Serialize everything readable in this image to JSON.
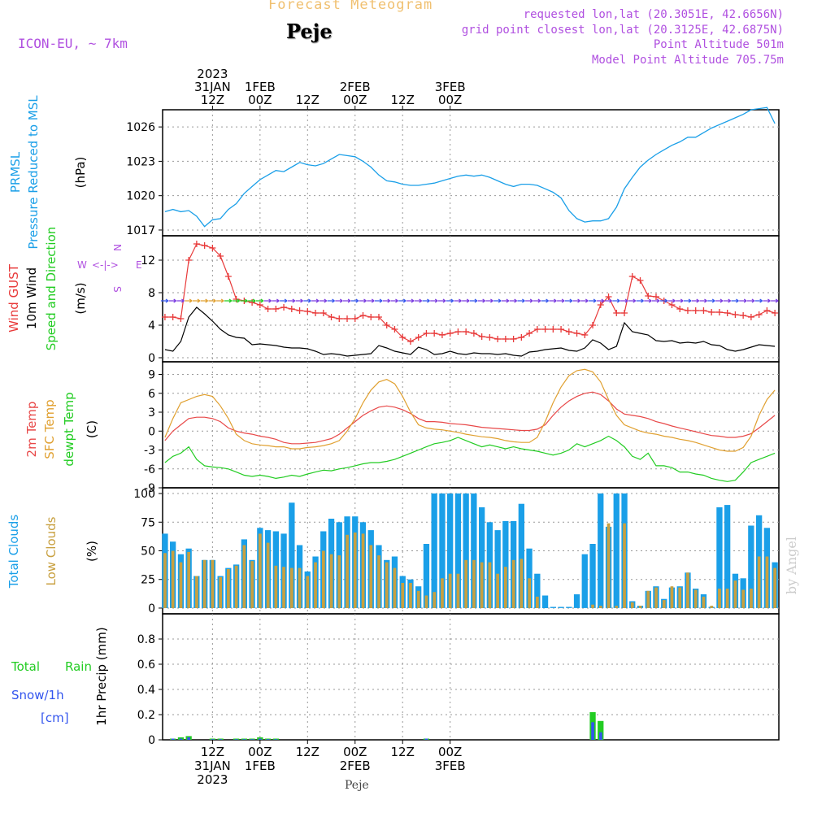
{
  "header": {
    "title": "Forecast Meteogram",
    "location": "Peje",
    "model": "ICON-EU, ~ 7km",
    "requested": "requested lon,lat (20.3051E, 42.6656N)",
    "closest": "grid point closest lon,lat (20.3125E, 42.6875N)",
    "point_alt": "Point Altitude 501m",
    "model_alt": "Model Point Altitude 705.75m",
    "watermark": "by Angel",
    "footer": "Peje"
  },
  "colors": {
    "pressure": "#1a9fe8",
    "gust": "#e83a3a",
    "wind": "#000000",
    "winddir": "#22cc22",
    "temp2m": "#e84848",
    "sfc": "#e0a030",
    "dewpt": "#22cc22",
    "total_clouds": "#1a9fe8",
    "low_clouds": "#c8a040",
    "rain": "#22cc22",
    "snow": "#3355ee",
    "title": "#f0c070",
    "info": "#b050e0"
  },
  "time_axis": {
    "top_labels": [
      {
        "h": 12,
        "lines": [
          "2023",
          "31JAN",
          "12Z"
        ]
      },
      {
        "h": 24,
        "lines": [
          "1FEB",
          "00Z"
        ]
      },
      {
        "h": 36,
        "lines": [
          "12Z"
        ]
      },
      {
        "h": 48,
        "lines": [
          "2FEB",
          "00Z"
        ]
      },
      {
        "h": 60,
        "lines": [
          "12Z"
        ]
      },
      {
        "h": 72,
        "lines": [
          "3FEB",
          "00Z"
        ]
      }
    ],
    "bottom_labels": [
      {
        "h": 12,
        "lines": [
          "12Z",
          "31JAN",
          "2023"
        ]
      },
      {
        "h": 24,
        "lines": [
          "00Z",
          "1FEB"
        ]
      },
      {
        "h": 36,
        "lines": [
          "12Z"
        ]
      },
      {
        "h": 48,
        "lines": [
          "00Z",
          "2FEB"
        ]
      },
      {
        "h": 60,
        "lines": [
          "12Z"
        ]
      },
      {
        "h": 72,
        "lines": [
          "00Z",
          "3FEB"
        ]
      }
    ]
  },
  "chart_data": [
    {
      "type": "line",
      "title": "PRMSL Pressure Reduced to MSL",
      "ylabel": "(hPa)",
      "ylim": [
        1016.5,
        1027.5
      ],
      "yticks": [
        1017,
        1020,
        1023,
        1026
      ],
      "x_hours": [
        0,
        2,
        4,
        6,
        8,
        10,
        12,
        14,
        16,
        18,
        20,
        22,
        24,
        26,
        28,
        30,
        32,
        34,
        36,
        38,
        40,
        42,
        44,
        46,
        48,
        50,
        52,
        54,
        56,
        58,
        60,
        62,
        64,
        66,
        68,
        70,
        72,
        74,
        76,
        78,
        80,
        82,
        84,
        86,
        88,
        90,
        92,
        94,
        96,
        98,
        100,
        102,
        104,
        106,
        108,
        110,
        112,
        114,
        116,
        118,
        120,
        122,
        124,
        126,
        128,
        130,
        132,
        134,
        136,
        138,
        140,
        142,
        144,
        146,
        148,
        150,
        152,
        154
      ],
      "series": [
        {
          "name": "PRMSL",
          "values": [
            1018.6,
            1018.8,
            1018.6,
            1018.7,
            1018.2,
            1017.3,
            1017.9,
            1018.0,
            1018.8,
            1019.3,
            1020.2,
            1020.8,
            1021.4,
            1021.8,
            1022.2,
            1022.1,
            1022.5,
            1022.9,
            1022.7,
            1022.6,
            1022.8,
            1023.2,
            1023.6,
            1023.5,
            1023.4,
            1023.0,
            1022.5,
            1021.8,
            1021.3,
            1021.2,
            1021.0,
            1020.9,
            1020.9,
            1021.0,
            1021.1,
            1021.3,
            1021.5,
            1021.7,
            1021.8,
            1021.7,
            1021.8,
            1021.6,
            1021.3,
            1021.0,
            1020.8,
            1021.0,
            1021.0,
            1020.9,
            1020.6,
            1020.3,
            1019.8,
            1018.7,
            1018.0,
            1017.7,
            1017.8,
            1017.8,
            1018.0,
            1019.0,
            1020.6,
            1021.6,
            1022.5,
            1023.1,
            1023.6,
            1024.0,
            1024.4,
            1024.7,
            1025.1,
            1025.1,
            1025.5,
            1025.9,
            1026.2,
            1026.5,
            1026.8,
            1027.1,
            1027.5,
            1027.6,
            1027.7,
            1026.3
          ]
        }
      ]
    },
    {
      "type": "line",
      "title": "Wind GUST / 10m Wind Speed and Direction",
      "ylabel": "(m/s)",
      "ylim": [
        -0.5,
        15
      ],
      "yticks": [
        0,
        4,
        8,
        12
      ],
      "direction_legend": {
        "n": "N",
        "s": "S",
        "w": "W",
        "e": "E",
        "arrow": "<-|->"
      },
      "x_hours": [
        0,
        2,
        4,
        6,
        8,
        10,
        12,
        14,
        16,
        18,
        20,
        22,
        24,
        26,
        28,
        30,
        32,
        34,
        36,
        38,
        40,
        42,
        44,
        46,
        48,
        50,
        52,
        54,
        56,
        58,
        60,
        62,
        64,
        66,
        68,
        70,
        72,
        74,
        76,
        78,
        80,
        82,
        84,
        86,
        88,
        90,
        92,
        94,
        96,
        98,
        100,
        102,
        104,
        106,
        108,
        110,
        112,
        114,
        116,
        118,
        120,
        122,
        124,
        126,
        128,
        130,
        132,
        134,
        136,
        138,
        140,
        142,
        144,
        146,
        148,
        150,
        152,
        154
      ],
      "series": [
        {
          "name": "Wind GUST",
          "values": [
            5.0,
            5.0,
            4.8,
            12.0,
            14.0,
            13.8,
            13.5,
            12.5,
            10.0,
            7.2,
            7.0,
            6.8,
            6.5,
            6.0,
            6.0,
            6.2,
            6.0,
            5.8,
            5.7,
            5.5,
            5.5,
            5.0,
            4.8,
            4.8,
            4.8,
            5.2,
            5.0,
            5.0,
            4.0,
            3.5,
            2.5,
            2.0,
            2.5,
            3.0,
            3.0,
            2.8,
            3.0,
            3.2,
            3.2,
            3.0,
            2.6,
            2.5,
            2.3,
            2.3,
            2.3,
            2.5,
            3.0,
            3.5,
            3.5,
            3.5,
            3.5,
            3.2,
            3.0,
            2.8,
            4.0,
            6.5,
            7.5,
            5.5,
            5.5,
            10.0,
            9.5,
            7.6,
            7.5,
            7.0,
            6.5,
            6.0,
            5.8,
            5.8,
            5.8,
            5.6,
            5.6,
            5.5,
            5.3,
            5.2,
            5.0,
            5.3,
            5.8,
            5.5
          ]
        },
        {
          "name": "10m Wind",
          "values": [
            1.0,
            0.8,
            2.0,
            5.0,
            6.2,
            5.4,
            4.5,
            3.5,
            2.8,
            2.5,
            2.4,
            1.6,
            1.7,
            1.6,
            1.5,
            1.3,
            1.2,
            1.2,
            1.1,
            0.8,
            0.4,
            0.5,
            0.4,
            0.2,
            0.3,
            0.4,
            0.5,
            1.5,
            1.2,
            0.8,
            0.6,
            0.4,
            1.3,
            1.0,
            0.4,
            0.5,
            0.8,
            0.5,
            0.4,
            0.6,
            0.5,
            0.5,
            0.4,
            0.5,
            0.3,
            0.2,
            0.7,
            0.8,
            1.0,
            1.1,
            1.2,
            0.9,
            0.8,
            1.2,
            2.2,
            1.8,
            1.0,
            1.4,
            4.3,
            3.2,
            3.0,
            2.8,
            2.1,
            2.0,
            2.1,
            1.8,
            1.9,
            1.8,
            2.0,
            1.6,
            1.5,
            1.0,
            0.8,
            1.0,
            1.3,
            1.6,
            1.5,
            1.4
          ]
        }
      ]
    },
    {
      "type": "line",
      "title": "2m Temp / SFC Temp / dewpt Temp",
      "ylabel": "(C)",
      "ylim": [
        -9,
        11
      ],
      "yticks": [
        -9,
        -6,
        -3,
        0,
        3,
        6,
        9
      ],
      "x_hours": [
        0,
        2,
        4,
        6,
        8,
        10,
        12,
        14,
        16,
        18,
        20,
        22,
        24,
        26,
        28,
        30,
        32,
        34,
        36,
        38,
        40,
        42,
        44,
        46,
        48,
        50,
        52,
        54,
        56,
        58,
        60,
        62,
        64,
        66,
        68,
        70,
        72,
        74,
        76,
        78,
        80,
        82,
        84,
        86,
        88,
        90,
        92,
        94,
        96,
        98,
        100,
        102,
        104,
        106,
        108,
        110,
        112,
        114,
        116,
        118,
        120,
        122,
        124,
        126,
        128,
        130,
        132,
        134,
        136,
        138,
        140,
        142,
        144,
        146,
        148,
        150,
        152,
        154
      ],
      "series": [
        {
          "name": "2m Temp",
          "values": [
            -1.5,
            0.0,
            1.0,
            2.0,
            2.2,
            2.2,
            2.0,
            1.5,
            0.5,
            0.0,
            -0.3,
            -0.5,
            -0.8,
            -1.0,
            -1.3,
            -1.8,
            -2.0,
            -2.0,
            -1.9,
            -1.8,
            -1.5,
            -1.2,
            -0.5,
            0.5,
            1.5,
            2.5,
            3.2,
            3.8,
            4.0,
            3.8,
            3.4,
            2.8,
            2.0,
            1.5,
            1.5,
            1.4,
            1.2,
            1.1,
            1.0,
            0.8,
            0.6,
            0.5,
            0.4,
            0.3,
            0.2,
            0.1,
            0.1,
            0.3,
            1.0,
            2.5,
            3.8,
            4.8,
            5.5,
            6.0,
            6.2,
            5.8,
            4.8,
            3.5,
            2.7,
            2.5,
            2.3,
            2.0,
            1.5,
            1.2,
            0.8,
            0.5,
            0.2,
            -0.1,
            -0.4,
            -0.7,
            -0.8,
            -1.0,
            -1.0,
            -0.8,
            -0.4,
            0.5,
            1.5,
            2.5
          ]
        },
        {
          "name": "SFC Temp",
          "values": [
            -1.0,
            2.0,
            4.5,
            5.0,
            5.5,
            5.8,
            5.5,
            4.0,
            2.0,
            -0.5,
            -1.5,
            -2.0,
            -2.2,
            -2.3,
            -2.5,
            -2.5,
            -2.8,
            -2.8,
            -2.6,
            -2.5,
            -2.3,
            -2.0,
            -1.5,
            0.0,
            2.0,
            4.5,
            6.5,
            7.8,
            8.2,
            7.5,
            5.5,
            3.0,
            1.0,
            0.5,
            0.3,
            0.2,
            0.0,
            -0.2,
            -0.5,
            -0.7,
            -0.9,
            -1.0,
            -1.2,
            -1.5,
            -1.7,
            -1.8,
            -1.8,
            -1.0,
            1.5,
            4.5,
            7.0,
            8.8,
            9.6,
            9.8,
            9.4,
            7.8,
            5.0,
            2.5,
            1.0,
            0.5,
            0.0,
            -0.3,
            -0.5,
            -0.8,
            -1.0,
            -1.3,
            -1.5,
            -1.8,
            -2.2,
            -2.6,
            -3.0,
            -3.2,
            -3.2,
            -2.6,
            -0.8,
            2.5,
            5.0,
            6.5
          ]
        },
        {
          "name": "dewpt Temp",
          "values": [
            -5.0,
            -4.0,
            -3.5,
            -2.5,
            -4.5,
            -5.5,
            -5.7,
            -5.8,
            -6.0,
            -6.5,
            -7.0,
            -7.2,
            -7.0,
            -7.2,
            -7.5,
            -7.3,
            -7.0,
            -7.2,
            -6.8,
            -6.5,
            -6.2,
            -6.3,
            -6.0,
            -5.8,
            -5.5,
            -5.2,
            -5.0,
            -5.0,
            -4.8,
            -4.5,
            -4.0,
            -3.5,
            -3.0,
            -2.5,
            -2.0,
            -1.8,
            -1.5,
            -1.0,
            -1.5,
            -2.0,
            -2.5,
            -2.2,
            -2.5,
            -2.8,
            -2.5,
            -2.8,
            -3.0,
            -3.2,
            -3.5,
            -3.8,
            -3.5,
            -3.0,
            -2.0,
            -2.5,
            -2.0,
            -1.5,
            -0.8,
            -1.5,
            -2.5,
            -4.0,
            -4.5,
            -3.5,
            -5.5,
            -5.5,
            -5.8,
            -6.5,
            -6.5,
            -6.8,
            -7.0,
            -7.5,
            -7.8,
            -8.0,
            -7.8,
            -6.5,
            -5.0,
            -4.5,
            -4.0,
            -3.5
          ]
        }
      ]
    },
    {
      "type": "bar",
      "title": "Total Clouds / Low Clouds",
      "ylabel": "(%)",
      "ylim": [
        -5,
        105
      ],
      "yticks": [
        0,
        25,
        50,
        75,
        100
      ],
      "x_hours": [
        0,
        2,
        4,
        6,
        8,
        10,
        12,
        14,
        16,
        18,
        20,
        22,
        24,
        26,
        28,
        30,
        32,
        34,
        36,
        38,
        40,
        42,
        44,
        46,
        48,
        50,
        52,
        54,
        56,
        58,
        60,
        62,
        64,
        66,
        68,
        70,
        72,
        74,
        76,
        78,
        80,
        82,
        84,
        86,
        88,
        90,
        92,
        94,
        96,
        98,
        100,
        102,
        104,
        106,
        108,
        110,
        112,
        114,
        116,
        118,
        120,
        122,
        124,
        126,
        128,
        130,
        132,
        134,
        136,
        138,
        140,
        142,
        144,
        146,
        148,
        150,
        152,
        154
      ],
      "series": [
        {
          "name": "Total Clouds",
          "values": [
            65,
            58,
            47,
            52,
            28,
            42,
            42,
            28,
            35,
            38,
            60,
            42,
            70,
            68,
            67,
            65,
            92,
            55,
            32,
            45,
            67,
            78,
            75,
            80,
            80,
            75,
            68,
            55,
            42,
            45,
            28,
            25,
            19,
            56,
            100,
            100,
            100,
            100,
            100,
            100,
            88,
            75,
            68,
            76,
            76,
            91,
            52,
            30,
            11,
            1,
            1,
            1,
            12,
            47,
            56,
            100,
            71,
            100,
            100,
            6,
            2,
            15,
            19,
            8,
            18,
            19,
            31,
            17,
            12,
            1,
            88,
            90,
            30,
            26,
            72,
            81,
            70,
            40
          ]
        },
        {
          "name": "Low Clouds",
          "values": [
            48,
            50,
            40,
            49,
            28,
            42,
            42,
            27,
            34,
            37,
            55,
            41,
            65,
            57,
            37,
            36,
            35,
            35,
            28,
            40,
            50,
            47,
            46,
            64,
            66,
            65,
            55,
            46,
            40,
            35,
            22,
            22,
            15,
            11,
            14,
            26,
            30,
            30,
            42,
            42,
            40,
            40,
            30,
            36,
            42,
            43,
            26,
            10,
            0,
            0,
            0,
            0,
            0,
            0,
            3,
            2,
            74,
            2,
            74,
            5,
            2,
            15,
            18,
            7,
            19,
            18,
            31,
            16,
            10,
            2,
            17,
            17,
            24,
            16,
            17,
            45,
            45,
            35
          ]
        }
      ]
    },
    {
      "type": "bar",
      "title": "Total Rain / Snow/1h [cm]",
      "ylabel": "1hr Precip (mm)",
      "ylim": [
        0,
        1.0
      ],
      "yticks": [
        0,
        0.2,
        0.4,
        0.6,
        0.8
      ],
      "ytick_labels": [
        "0",
        "0.2",
        "0.4",
        "0.6",
        "0.8"
      ],
      "x_hours": [
        2,
        4,
        6,
        12,
        14,
        18,
        20,
        22,
        24,
        26,
        28,
        66,
        108,
        110
      ],
      "series": [
        {
          "name": "Total Rain",
          "values": [
            0.01,
            0.02,
            0.03,
            0.01,
            0.01,
            0.01,
            0.01,
            0.01,
            0.02,
            0.01,
            0.01,
            0.01,
            0.22,
            0.15
          ]
        },
        {
          "name": "Snow/1h",
          "values": [
            0.01,
            0.01,
            0.02,
            0.005,
            0.005,
            0.005,
            0.005,
            0.005,
            0.01,
            0.005,
            0.005,
            0.01,
            0.14,
            0.06
          ]
        }
      ],
      "labels": {
        "rain": "Total",
        "rain2": "Rain",
        "snow": "Snow/1h",
        "cm": "[cm]"
      }
    }
  ]
}
